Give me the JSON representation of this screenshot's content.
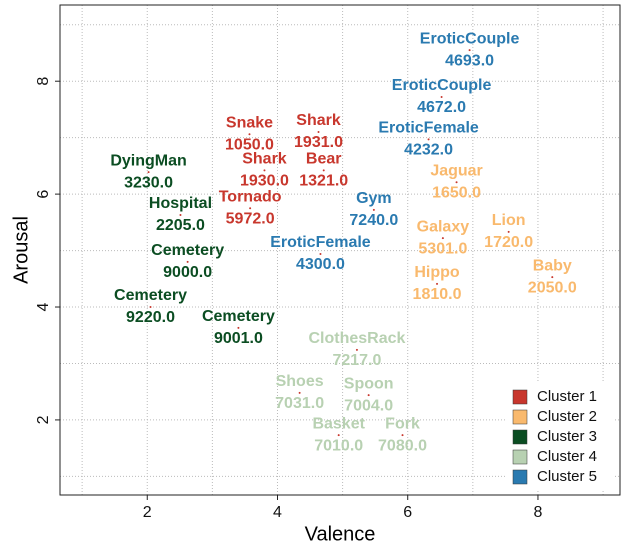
{
  "chart_data": {
    "type": "scatter",
    "xlabel": "Valence",
    "ylabel": "Arousal",
    "xlim": [
      0.66,
      9.26
    ],
    "ylim": [
      0.67,
      9.35
    ],
    "xticks": [
      2,
      4,
      6,
      8
    ],
    "yticks": [
      2,
      4,
      6,
      8
    ],
    "grid": true,
    "grid_lines": {
      "x": [
        1,
        2,
        3,
        4,
        5,
        6,
        7,
        8,
        9
      ],
      "y": [
        1,
        2,
        3,
        4,
        5,
        6,
        7,
        8,
        9
      ]
    },
    "legend": "bottom right",
    "series": [
      {
        "name": "Cluster 1",
        "color": "#c8372d",
        "names": [
          "Snake",
          "Shark",
          "Shark",
          "Bear",
          "Tornado"
        ],
        "labels": [
          "1050.0",
          "1931.0",
          "1930.0",
          "1321.0",
          "5972.0"
        ],
        "x": [
          3.57,
          4.63,
          3.8,
          4.71,
          3.58
        ],
        "values": [
          7.06,
          7.1,
          6.42,
          6.42,
          5.75
        ]
      },
      {
        "name": "Cluster 2",
        "color": "#f9b96d",
        "names": [
          "Jaguar",
          "Galaxy",
          "Lion",
          "Hippo",
          "Baby"
        ],
        "labels": [
          "1650.0",
          "5301.0",
          "1720.0",
          "1810.0",
          "2050.0"
        ],
        "x": [
          6.75,
          6.54,
          7.55,
          6.45,
          8.22
        ],
        "values": [
          6.21,
          5.22,
          5.33,
          4.41,
          4.53
        ]
      },
      {
        "name": "Cluster 3",
        "color": "#0b4d22",
        "names": [
          "DyingMan",
          "Hospital",
          "Cemetery",
          "Cemetery",
          "Cemetery"
        ],
        "labels": [
          "3230.0",
          "2205.0",
          "9000.0",
          "9220.0",
          "9001.0"
        ],
        "x": [
          2.02,
          2.51,
          2.62,
          2.05,
          3.4
        ],
        "values": [
          6.39,
          5.63,
          4.8,
          4.0,
          3.63
        ]
      },
      {
        "name": "Cluster 4",
        "color": "#b8d1b2",
        "names": [
          "ClothesRack",
          "Shoes",
          "Spoon",
          "Basket",
          "Fork"
        ],
        "labels": [
          "7217.0",
          "7031.0",
          "7004.0",
          "7010.0",
          "7080.0"
        ],
        "x": [
          5.22,
          4.34,
          5.4,
          4.94,
          5.92
        ],
        "values": [
          3.24,
          2.48,
          2.44,
          1.73,
          1.73
        ]
      },
      {
        "name": "Cluster 5",
        "color": "#2a7ab0",
        "names": [
          "EroticCouple",
          "EroticCouple",
          "EroticFemale",
          "Gym",
          "EroticFemale"
        ],
        "labels": [
          "4693.0",
          "4672.0",
          "4232.0",
          "7240.0",
          "4300.0"
        ],
        "x": [
          6.95,
          6.52,
          6.32,
          5.48,
          4.66
        ],
        "values": [
          8.55,
          7.72,
          6.97,
          5.72,
          4.94
        ]
      }
    ]
  }
}
